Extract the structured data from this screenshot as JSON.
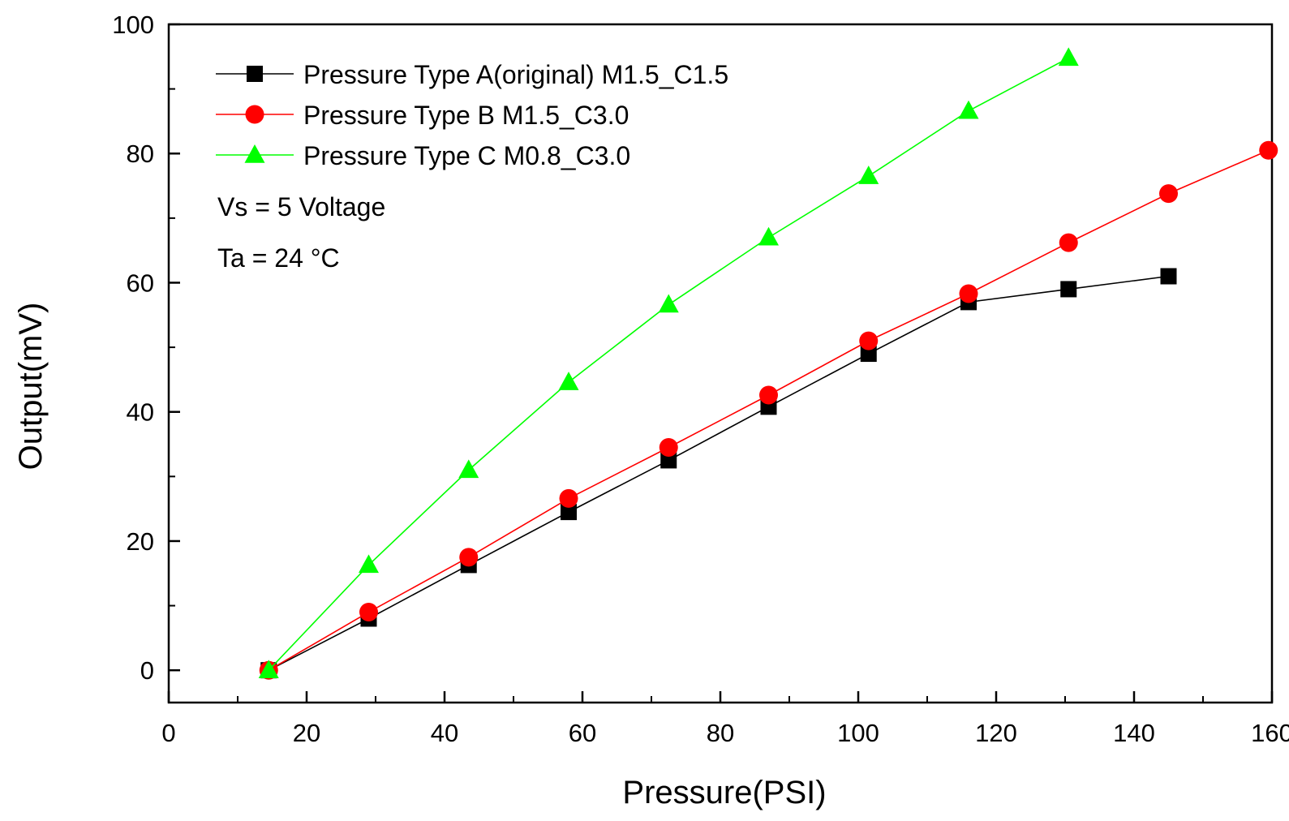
{
  "chart_data": {
    "type": "line",
    "title": "",
    "xlabel": "Pressure(PSI)",
    "ylabel": "Output(mV)",
    "xlim": [
      0,
      160
    ],
    "ylim": [
      -5,
      100
    ],
    "xticks": [
      0,
      20,
      40,
      60,
      80,
      100,
      120,
      140,
      160
    ],
    "yticks": [
      0,
      20,
      40,
      60,
      80,
      100
    ],
    "xtick_labels": [
      "0",
      "20",
      "40",
      "60",
      "80",
      "100",
      "120",
      "140",
      "160"
    ],
    "ytick_labels": [
      "0",
      "20",
      "40",
      "60",
      "80",
      "100"
    ],
    "grid": false,
    "legend_position": "top-left",
    "annotations": [
      {
        "text": "Vs = 5 Voltage"
      },
      {
        "text": "Ta = 24 °C"
      }
    ],
    "series": [
      {
        "name": "Pressure Type A(original) M1.5_C1.5",
        "marker": "square",
        "color": "#000000",
        "x": [
          14.5,
          29,
          43.5,
          58,
          72.5,
          87,
          101.5,
          116,
          130.5,
          145
        ],
        "y": [
          0,
          8,
          16.3,
          24.5,
          32.5,
          40.8,
          49,
          57,
          59,
          61
        ]
      },
      {
        "name": "Pressure Type B M1.5_C3.0",
        "marker": "circle",
        "color": "#ff0000",
        "x": [
          14.5,
          29,
          43.5,
          58,
          72.5,
          87,
          101.5,
          116,
          130.5,
          145,
          159.5
        ],
        "y": [
          0,
          9,
          17.5,
          26.6,
          34.5,
          42.6,
          51,
          58.3,
          66.2,
          73.8,
          80.5
        ]
      },
      {
        "name": "Pressure Type C M0.8_C3.0",
        "marker": "triangle",
        "color": "#00ff00",
        "x": [
          14.5,
          29,
          43.5,
          58,
          72.5,
          87,
          101.5,
          116,
          130.5
        ],
        "y": [
          0,
          16.3,
          31,
          44.6,
          56.6,
          67,
          76.5,
          86.6,
          94.8
        ]
      }
    ]
  }
}
